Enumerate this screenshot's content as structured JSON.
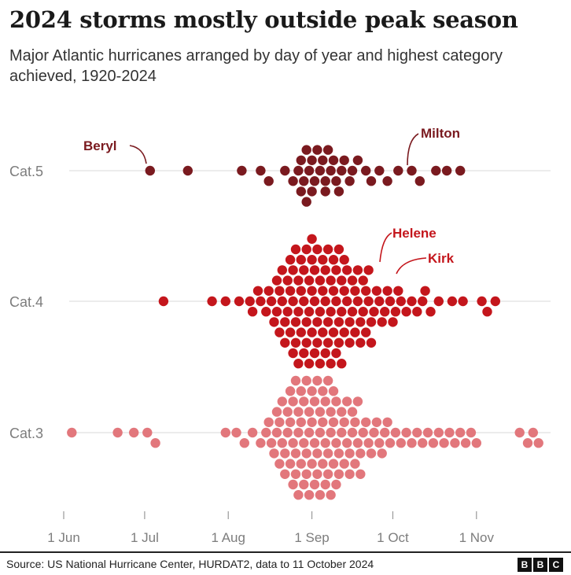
{
  "header": {
    "title": "2024 storms mostly outside peak season",
    "subtitle": "Major Atlantic hurricanes arranged by day of year and highest category achieved, 1920-2024"
  },
  "footer": {
    "source": "Source: US National Hurricane Center, HURDAT2, data to 11 October 2024",
    "logo": [
      "B",
      "B",
      "C"
    ]
  },
  "colors": {
    "cat5": "#7a1a1f",
    "cat4": "#c4161c",
    "cat3": "#e2777c",
    "gridline": "#e6e6e6",
    "axis_text": "#7d7d7d"
  },
  "chart_data": {
    "type": "scatter",
    "subtype": "beeswarm",
    "title": "2024 storms mostly outside peak season",
    "subtitle": "Major Atlantic hurricanes arranged by day of year and highest category achieved, 1920-2024",
    "x_unit": "day of year",
    "x_range": [
      148,
      338
    ],
    "x_ticks": [
      {
        "label": "1 Jun",
        "day": 152
      },
      {
        "label": "1 Jul",
        "day": 182
      },
      {
        "label": "1 Aug",
        "day": 213
      },
      {
        "label": "1 Sep",
        "day": 244
      },
      {
        "label": "1 Oct",
        "day": 274
      },
      {
        "label": "1 Nov",
        "day": 305
      }
    ],
    "categories": [
      "Cat.5",
      "Cat.4",
      "Cat.3"
    ],
    "series": [
      {
        "name": "Cat.5",
        "category": "Cat.5",
        "count": 42,
        "days": [
          184,
          198,
          218,
          225,
          228,
          234,
          237,
          239,
          240,
          240,
          241,
          242,
          242,
          243,
          244,
          244,
          245,
          246,
          247,
          248,
          249,
          249,
          250,
          251,
          252,
          253,
          254,
          255,
          256,
          258,
          259,
          261,
          264,
          266,
          269,
          272,
          276,
          281,
          284,
          290,
          294,
          299
        ]
      },
      {
        "name": "Cat.4",
        "category": "Cat.4",
        "count": 129,
        "days": [
          189,
          207,
          212,
          217,
          221,
          222,
          224,
          225,
          227,
          228,
          229,
          230,
          231,
          231,
          232,
          232,
          233,
          233,
          234,
          234,
          235,
          235,
          236,
          236,
          236,
          237,
          237,
          237,
          238,
          238,
          238,
          239,
          239,
          239,
          240,
          240,
          240,
          241,
          241,
          241,
          242,
          242,
          242,
          243,
          243,
          243,
          244,
          244,
          244,
          244,
          245,
          245,
          245,
          246,
          246,
          246,
          247,
          247,
          247,
          248,
          248,
          248,
          249,
          249,
          249,
          250,
          250,
          250,
          251,
          251,
          251,
          252,
          252,
          252,
          253,
          253,
          253,
          254,
          254,
          254,
          255,
          255,
          255,
          256,
          256,
          256,
          257,
          257,
          258,
          258,
          259,
          259,
          260,
          260,
          261,
          261,
          262,
          262,
          263,
          263,
          264,
          264,
          265,
          265,
          266,
          266,
          267,
          268,
          269,
          270,
          271,
          272,
          273,
          274,
          275,
          276,
          277,
          279,
          281,
          283,
          285,
          286,
          288,
          291,
          296,
          300,
          307,
          309,
          312
        ]
      },
      {
        "name": "Cat.3",
        "category": "Cat.3",
        "count": 127,
        "days": [
          155,
          172,
          178,
          183,
          186,
          212,
          216,
          219,
          222,
          225,
          227,
          228,
          229,
          230,
          231,
          231,
          232,
          232,
          233,
          233,
          234,
          234,
          235,
          235,
          236,
          236,
          236,
          237,
          237,
          237,
          238,
          238,
          238,
          239,
          239,
          239,
          240,
          240,
          240,
          241,
          241,
          241,
          242,
          242,
          242,
          243,
          243,
          243,
          244,
          244,
          244,
          245,
          245,
          245,
          246,
          246,
          246,
          247,
          247,
          247,
          248,
          248,
          248,
          249,
          249,
          249,
          250,
          250,
          250,
          251,
          251,
          251,
          252,
          252,
          252,
          253,
          253,
          253,
          254,
          254,
          255,
          255,
          256,
          256,
          257,
          257,
          258,
          258,
          259,
          259,
          260,
          260,
          261,
          261,
          262,
          262,
          263,
          264,
          265,
          266,
          267,
          268,
          269,
          270,
          271,
          272,
          273,
          275,
          277,
          279,
          281,
          283,
          285,
          287,
          289,
          291,
          293,
          295,
          297,
          299,
          301,
          303,
          305,
          321,
          324,
          326,
          328
        ]
      }
    ],
    "annotations": [
      {
        "label": "Beryl",
        "category": "Cat.5",
        "day": 184
      },
      {
        "label": "Milton",
        "category": "Cat.5",
        "day": 281
      },
      {
        "label": "Helene",
        "category": "Cat.4",
        "day": 269
      },
      {
        "label": "Kirk",
        "category": "Cat.4",
        "day": 274
      }
    ],
    "grid": true,
    "legend": "none"
  }
}
